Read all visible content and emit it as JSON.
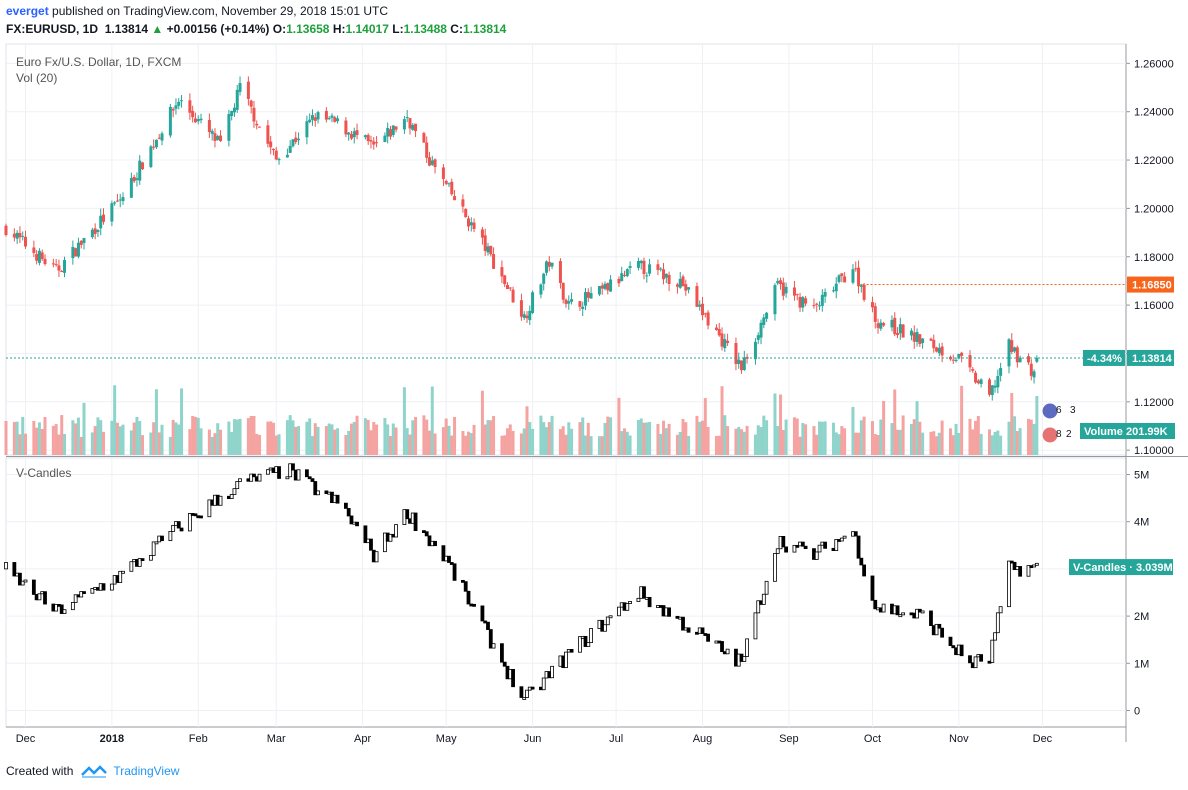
{
  "header": {
    "author": "everget",
    "published_text": "published on TradingView.com, November 29, 2018 15:01 UTC",
    "symbol": "FX:EURUSD, 1D",
    "last_price": "1.13814",
    "change": "+0.00156 (+0.14%)",
    "o_label": "O:",
    "o": "1.13658",
    "h_label": "H:",
    "h": "1.14017",
    "l_label": "L:",
    "l": "1.13488",
    "c_label": "C:",
    "c": "1.13814"
  },
  "main_pane": {
    "title": "Euro Fx/U.S. Dollar, 1D, FXCM",
    "vol_label": "Vol (20)",
    "price_ticks": [
      "1.26000",
      "1.24000",
      "1.22000",
      "1.20000",
      "1.18000",
      "1.16000",
      "1.14000",
      "1.12000",
      "1.10000"
    ],
    "horizontal_level": "1.16850",
    "current_pct": "-4.34%",
    "current_price": "1.13814",
    "volume_label": "Volume",
    "volume_value": "201.99K",
    "event_badges": [
      "6",
      "3",
      "8",
      "2"
    ]
  },
  "indicator_pane": {
    "title": "V-Candles",
    "ticks": [
      "5M",
      "4M",
      "3M",
      "2M",
      "1M",
      "0"
    ],
    "label": "V-Candles",
    "value": "3.039M"
  },
  "x_axis": [
    "Dec",
    "2018",
    "Feb",
    "Mar",
    "Apr",
    "May",
    "Jun",
    "Jul",
    "Aug",
    "Sep",
    "Oct",
    "Nov",
    "Dec"
  ],
  "colors": {
    "up": "#26a69a",
    "down": "#ef5350",
    "vol_up": "#8fd4cb",
    "vol_down": "#f5a3a1",
    "level": "#f7641b",
    "accent": "#2196f3",
    "vcandle_up": "#ffffff",
    "vcandle_down": "#000000"
  },
  "footer": {
    "created_with": "Created with",
    "brand": "TradingView"
  },
  "chart_data": [
    {
      "type": "candlestick",
      "title": "Euro Fx/U.S. Dollar, 1D, FXCM",
      "ylim": [
        1.098,
        1.268
      ],
      "x_range": [
        "2017-11-24",
        "2018-12-31"
      ],
      "date_anchors": [
        {
          "date": "2017-11-24",
          "close": 1.192
        },
        {
          "date": "2017-12-12",
          "close": 1.174
        },
        {
          "date": "2018-01-05",
          "close": 1.205
        },
        {
          "date": "2018-01-25",
          "close": 1.245
        },
        {
          "date": "2018-02-09",
          "close": 1.226
        },
        {
          "date": "2018-02-16",
          "close": 1.25
        },
        {
          "date": "2018-03-01",
          "close": 1.22
        },
        {
          "date": "2018-03-15",
          "close": 1.238
        },
        {
          "date": "2018-03-23",
          "close": 1.235
        },
        {
          "date": "2018-04-05",
          "close": 1.225
        },
        {
          "date": "2018-04-17",
          "close": 1.238
        },
        {
          "date": "2018-04-25",
          "close": 1.22
        },
        {
          "date": "2018-05-15",
          "close": 1.184
        },
        {
          "date": "2018-05-29",
          "close": 1.155
        },
        {
          "date": "2018-06-07",
          "close": 1.178
        },
        {
          "date": "2018-06-14",
          "close": 1.16
        },
        {
          "date": "2018-06-25",
          "close": 1.165
        },
        {
          "date": "2018-07-09",
          "close": 1.176
        },
        {
          "date": "2018-07-24",
          "close": 1.17
        },
        {
          "date": "2018-08-15",
          "close": 1.134
        },
        {
          "date": "2018-08-28",
          "close": 1.168
        },
        {
          "date": "2018-09-10",
          "close": 1.158
        },
        {
          "date": "2018-09-24",
          "close": 1.176
        },
        {
          "date": "2018-10-02",
          "close": 1.154
        },
        {
          "date": "2018-10-10",
          "close": 1.15
        },
        {
          "date": "2018-10-19",
          "close": 1.145
        },
        {
          "date": "2018-11-01",
          "close": 1.138
        },
        {
          "date": "2018-11-12",
          "close": 1.122
        },
        {
          "date": "2018-11-19",
          "close": 1.143
        },
        {
          "date": "2018-11-28",
          "close": 1.132
        },
        {
          "date": "2018-11-29",
          "close": 1.138
        }
      ],
      "last_bar": {
        "open": 1.13658,
        "high": 1.14017,
        "low": 1.13488,
        "close": 1.13814
      }
    },
    {
      "type": "bar",
      "title": "Vol (20)",
      "series": [
        {
          "name": "Volume",
          "last": "201.99K"
        }
      ]
    },
    {
      "type": "candlestick",
      "title": "V-Candles",
      "ylim": [
        -0.35,
        5.35
      ],
      "unit": "M",
      "date_anchors": [
        {
          "date": "2017-11-24",
          "value": 3.0
        },
        {
          "date": "2017-12-12",
          "value": 2.1
        },
        {
          "date": "2018-01-05",
          "value": 2.9
        },
        {
          "date": "2018-01-25",
          "value": 3.9
        },
        {
          "date": "2018-02-16",
          "value": 4.8
        },
        {
          "date": "2018-03-05",
          "value": 5.1
        },
        {
          "date": "2018-03-25",
          "value": 4.3
        },
        {
          "date": "2018-04-05",
          "value": 3.3
        },
        {
          "date": "2018-04-17",
          "value": 4.2
        },
        {
          "date": "2018-05-01",
          "value": 3.2
        },
        {
          "date": "2018-05-29",
          "value": 0.2
        },
        {
          "date": "2018-06-14",
          "value": 1.2
        },
        {
          "date": "2018-07-09",
          "value": 2.5
        },
        {
          "date": "2018-08-15",
          "value": 1.0
        },
        {
          "date": "2018-08-28",
          "value": 3.6
        },
        {
          "date": "2018-09-10",
          "value": 3.3
        },
        {
          "date": "2018-09-24",
          "value": 3.8
        },
        {
          "date": "2018-10-02",
          "value": 2.2
        },
        {
          "date": "2018-10-19",
          "value": 2.0
        },
        {
          "date": "2018-11-05",
          "value": 1.0
        },
        {
          "date": "2018-11-12",
          "value": 1.1
        },
        {
          "date": "2018-11-19",
          "value": 3.0
        },
        {
          "date": "2018-11-29",
          "value": 3.039
        }
      ]
    }
  ]
}
